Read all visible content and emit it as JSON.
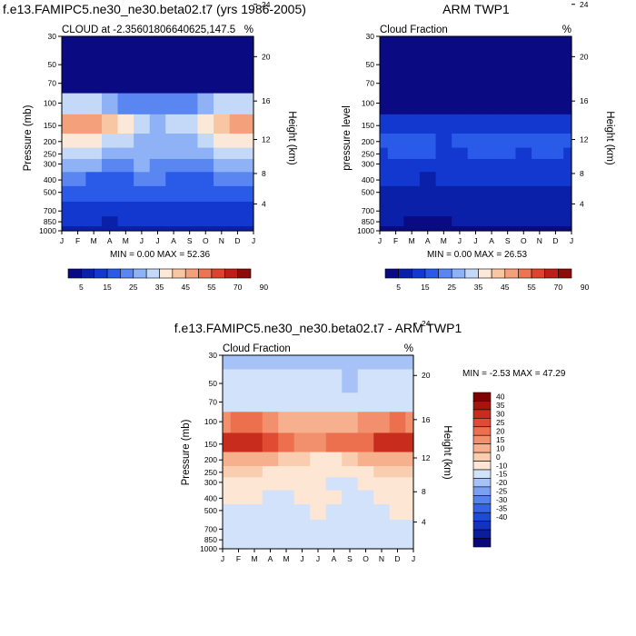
{
  "panels": [
    {
      "id": "model",
      "title": "f.e13.FAMIPC5.ne30_ne30.beta02.t7 (yrs 1986-2005)",
      "left_label": "CLOUD at -2.35601806640625,147.5",
      "right_label": "%",
      "ylabel": "Pressure (mb)",
      "ylabel_right": "Height (km)",
      "minmax": "MIN =   0.00 MAX =  52.36",
      "palette": "seq"
    },
    {
      "id": "obs",
      "title": "ARM TWP1",
      "left_label": "Cloud Fraction",
      "right_label": "%",
      "ylabel": "pressure level",
      "ylabel_right": "Height (km)",
      "minmax": "MIN =   0.00 MAX =  26.53",
      "palette": "seq"
    },
    {
      "id": "diff",
      "title": "f.e13.FAMIPC5.ne30_ne30.beta02.t7 - ARM TWP1",
      "left_label": "Cloud Fraction",
      "right_label": "%",
      "ylabel": "Pressure (mb)",
      "ylabel_right": "Height (km)",
      "minmax": "MIN =  -2.53 MAX =  47.29",
      "palette": "div"
    }
  ],
  "seq_colorbar": {
    "colors": [
      "#0a0a82",
      "#0b20a8",
      "#1238d0",
      "#2a5ae8",
      "#5a86f2",
      "#8fb2f6",
      "#c4d9f8",
      "#fce8d8",
      "#f9c6a4",
      "#f4a07a",
      "#ec7452",
      "#dc4430",
      "#be1e18",
      "#8c0c0a"
    ],
    "labels": [
      "5",
      "15",
      "25",
      "35",
      "45",
      "55",
      "70",
      "90"
    ]
  },
  "div_colorbar": {
    "colors": [
      "#07097a",
      "#0b1d9c",
      "#1232c0",
      "#1e4ad8",
      "#3563e4",
      "#5582ec",
      "#7aa0f2",
      "#a6c2f6",
      "#d2e2fa",
      "#fde6d4",
      "#f9cdb0",
      "#f6b08e",
      "#f2906d",
      "#ec6f4e",
      "#e04c33",
      "#c82c1c",
      "#a8140c",
      "#800000"
    ],
    "labels": [
      "40",
      "35",
      "30",
      "25",
      "20",
      "15",
      "10",
      "0",
      "-10",
      "-15",
      "-20",
      "-25",
      "-30",
      "-35",
      "-40"
    ]
  },
  "axes": {
    "months": [
      "J",
      "F",
      "M",
      "A",
      "M",
      "J",
      "J",
      "A",
      "S",
      "O",
      "N",
      "D",
      "J"
    ],
    "pressure_ticks": [
      "30",
      "50",
      "70",
      "100",
      "150",
      "200",
      "250",
      "300",
      "400",
      "500",
      "700",
      "850",
      "1000"
    ],
    "height_ticks": [
      "24",
      "20",
      "16",
      "12",
      "8",
      "4"
    ]
  },
  "chart_data": [
    {
      "type": "heatmap",
      "title": "f.e13.FAMIPC5.ne30_ne30.beta02.t7 (yrs 1986-2005)",
      "variable": "CLOUD at -2.35601806640625,147.5",
      "units": "%",
      "x": [
        "J",
        "F",
        "M",
        "A",
        "M",
        "J",
        "J",
        "A",
        "S",
        "O",
        "N",
        "D",
        "J"
      ],
      "y": [
        30,
        50,
        70,
        100,
        150,
        200,
        250,
        300,
        400,
        500,
        700,
        850,
        1000
      ],
      "values": [
        [
          0,
          0,
          0,
          0,
          0,
          0,
          0,
          0,
          0,
          0,
          0,
          0,
          0
        ],
        [
          1,
          1,
          1,
          1,
          1,
          1,
          1,
          1,
          1,
          1,
          1,
          1,
          1
        ],
        [
          3,
          3,
          3,
          3,
          3,
          3,
          3,
          3,
          3,
          3,
          3,
          3,
          3
        ],
        [
          30,
          34,
          33,
          28,
          22,
          20,
          20,
          21,
          22,
          26,
          30,
          34,
          30
        ],
        [
          45,
          48,
          47,
          42,
          36,
          30,
          29,
          30,
          32,
          38,
          44,
          48,
          45
        ],
        [
          36,
          38,
          37,
          34,
          31,
          28,
          28,
          28,
          29,
          32,
          36,
          38,
          36
        ],
        [
          30,
          31,
          30,
          28,
          28,
          27,
          26,
          26,
          27,
          28,
          30,
          31,
          30
        ],
        [
          26,
          27,
          25,
          22,
          23,
          25,
          24,
          22,
          21,
          23,
          26,
          27,
          26
        ],
        [
          22,
          21,
          19,
          16,
          19,
          23,
          22,
          18,
          16,
          17,
          21,
          22,
          22
        ],
        [
          18,
          17,
          16,
          15,
          16,
          18,
          18,
          16,
          15,
          15,
          17,
          18,
          18
        ],
        [
          12,
          11,
          11,
          10,
          11,
          12,
          12,
          11,
          11,
          11,
          11,
          12,
          12
        ],
        [
          10,
          10,
          10,
          9,
          10,
          10,
          10,
          10,
          10,
          10,
          10,
          10,
          10
        ],
        [
          7,
          7,
          7,
          7,
          7,
          7,
          7,
          7,
          7,
          7,
          7,
          7,
          7
        ]
      ],
      "levels": [
        5,
        10,
        15,
        20,
        25,
        30,
        35,
        40,
        45,
        50,
        55,
        60,
        70,
        80,
        90
      ],
      "min": 0.0,
      "max": 52.36
    },
    {
      "type": "heatmap",
      "title": "ARM TWP1",
      "variable": "Cloud Fraction",
      "units": "%",
      "x": [
        "J",
        "F",
        "M",
        "A",
        "M",
        "J",
        "J",
        "A",
        "S",
        "O",
        "N",
        "D",
        "J"
      ],
      "y": [
        30,
        50,
        70,
        100,
        150,
        200,
        250,
        300,
        400,
        500,
        700,
        850,
        1000
      ],
      "values": [
        [
          0,
          0,
          0,
          0,
          0,
          0,
          0,
          0,
          0,
          0,
          0,
          0,
          0
        ],
        [
          0,
          0,
          0,
          0,
          0,
          0,
          0,
          0,
          0,
          0,
          0,
          0,
          0
        ],
        [
          0,
          0,
          0,
          0,
          0,
          0,
          0,
          0,
          0,
          0,
          0,
          0,
          0
        ],
        [
          1,
          1,
          1,
          1,
          1,
          1,
          1,
          1,
          1,
          1,
          1,
          1,
          1
        ],
        [
          11,
          12,
          13,
          12,
          10,
          10,
          11,
          12,
          12,
          11,
          12,
          12,
          11
        ],
        [
          15,
          16,
          17,
          16,
          14,
          15,
          19,
          17,
          16,
          15,
          16,
          16,
          15
        ],
        [
          14,
          15,
          16,
          15,
          14,
          14,
          17,
          16,
          15,
          14,
          15,
          15,
          14
        ],
        [
          12,
          13,
          14,
          13,
          13,
          13,
          14,
          14,
          13,
          12,
          13,
          13,
          12
        ],
        [
          10,
          11,
          11,
          9,
          10,
          11,
          10,
          10,
          10,
          10,
          10,
          10,
          10
        ],
        [
          8,
          8,
          8,
          7,
          7,
          9,
          8,
          8,
          8,
          8,
          8,
          8,
          8
        ],
        [
          7,
          6,
          6,
          5,
          5,
          6,
          7,
          7,
          7,
          6,
          6,
          6,
          7
        ],
        [
          5,
          5,
          4,
          4,
          4,
          5,
          5,
          5,
          5,
          5,
          5,
          5,
          5
        ],
        [
          3,
          3,
          3,
          3,
          3,
          3,
          3,
          3,
          3,
          3,
          3,
          3,
          3
        ]
      ],
      "levels": [
        5,
        10,
        15,
        20,
        25,
        30,
        35,
        40,
        45,
        50,
        55,
        60,
        70,
        80,
        90
      ],
      "min": 0.0,
      "max": 26.53
    },
    {
      "type": "heatmap",
      "title": "f.e13.FAMIPC5.ne30_ne30.beta02.t7 - ARM TWP1",
      "variable": "Cloud Fraction",
      "units": "%",
      "x": [
        "J",
        "F",
        "M",
        "A",
        "M",
        "J",
        "J",
        "A",
        "S",
        "O",
        "N",
        "D",
        "J"
      ],
      "y": [
        30,
        50,
        70,
        100,
        150,
        200,
        250,
        300,
        400,
        500,
        700,
        850,
        1000
      ],
      "values": [
        [
          -2,
          -2,
          -2,
          -2,
          -2,
          -2,
          -2,
          -2,
          -2,
          -2,
          -2,
          -2,
          -2
        ],
        [
          1,
          1,
          1,
          1,
          1,
          1,
          1,
          1,
          -1,
          1,
          1,
          1,
          1
        ],
        [
          3,
          3,
          3,
          3,
          3,
          3,
          3,
          3,
          3,
          3,
          3,
          3,
          3
        ],
        [
          28,
          32,
          31,
          27,
          22,
          20,
          20,
          21,
          22,
          25,
          29,
          32,
          28
        ],
        [
          40,
          44,
          44,
          38,
          32,
          27,
          28,
          30,
          31,
          34,
          40,
          44,
          40
        ],
        [
          21,
          23,
          22,
          22,
          19,
          16,
          11,
          14,
          17,
          20,
          22,
          23,
          21
        ],
        [
          16,
          17,
          16,
          13,
          13,
          14,
          10,
          11,
          13,
          14,
          15,
          16,
          16
        ],
        [
          13,
          14,
          12,
          10,
          10,
          12,
          10,
          9,
          9,
          11,
          13,
          14,
          13
        ],
        [
          10,
          11,
          10,
          8,
          9,
          12,
          12,
          10,
          8,
          9,
          11,
          12,
          12
        ],
        [
          8,
          9,
          8,
          8,
          9,
          8,
          10,
          8,
          7,
          7,
          9,
          10,
          10
        ],
        [
          5,
          5,
          5,
          5,
          6,
          6,
          5,
          4,
          4,
          5,
          5,
          6,
          5
        ],
        [
          3,
          3,
          4,
          5,
          5,
          5,
          5,
          5,
          5,
          5,
          5,
          5,
          5
        ],
        [
          3,
          3,
          3,
          3,
          3,
          3,
          3,
          3,
          3,
          3,
          3,
          3,
          3
        ]
      ],
      "levels": [
        -40,
        -35,
        -30,
        -25,
        -20,
        -15,
        -10,
        0,
        10,
        15,
        20,
        25,
        30,
        35,
        40
      ],
      "min": -2.53,
      "max": 47.29
    }
  ]
}
